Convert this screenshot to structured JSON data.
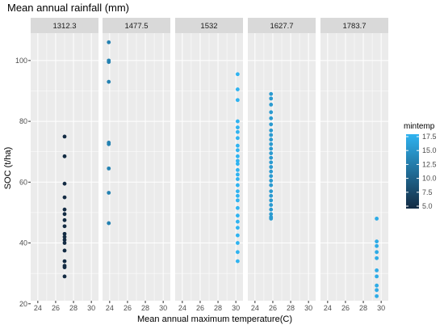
{
  "chart_data": {
    "type": "scatter",
    "title": "Mean annual rainfall (mm)",
    "xlabel": "Mean annual maximum temperature(C)",
    "ylabel": "SOC (t/ha)",
    "xlim": [
      23.2,
      30.8
    ],
    "ylim": [
      21,
      109
    ],
    "x_ticks": [
      24,
      26,
      28,
      30
    ],
    "y_ticks": [
      20,
      40,
      60,
      80,
      100
    ],
    "grid": true,
    "facet_variable": "Mean annual rainfall (mm)",
    "facets": [
      {
        "label": "1312.3",
        "x": 27,
        "mintemp": 5,
        "y": [
          75,
          68.5,
          59.5,
          55,
          51,
          49.5,
          47.5,
          45.5,
          43,
          42,
          41,
          40,
          37.5,
          34,
          32.5,
          32,
          29
        ]
      },
      {
        "label": "1477.5",
        "x": 23.9,
        "mintemp": 13,
        "y": [
          106,
          100,
          99.5,
          93,
          73,
          72.5,
          64.5,
          56.5,
          46.5
        ]
      },
      {
        "label": "1532",
        "x": 30.2,
        "mintemp": 17.5,
        "y": [
          95.5,
          90.5,
          87,
          80,
          78,
          76.5,
          74.5,
          72,
          70.5,
          68.5,
          67,
          66,
          64,
          62.5,
          61,
          59,
          57,
          55.5,
          54,
          51.5,
          49,
          47,
          45,
          42.5,
          40,
          37,
          34
        ]
      },
      {
        "label": "1627.7",
        "x": 25.8,
        "mintemp": 15.2,
        "y": [
          89,
          87.5,
          85.5,
          83,
          81,
          79,
          77,
          75.5,
          74,
          72.5,
          71,
          69.5,
          68,
          66.5,
          65,
          63.5,
          62,
          60.5,
          59,
          57,
          55.5,
          54,
          52.5,
          51,
          49.5,
          48.5,
          48
        ]
      },
      {
        "label": "1783.7",
        "x": 29.5,
        "mintemp": 16.8,
        "y": [
          48,
          40.5,
          39,
          37,
          35,
          31,
          29,
          26,
          24.5,
          22.5
        ]
      }
    ],
    "color_legend": {
      "title": "mintemp",
      "range": [
        5,
        17.5
      ],
      "ticks": [
        "17.5",
        "15.0",
        "12.5",
        "10.0",
        "7.5",
        "5.0"
      ],
      "low_color": "#132b43",
      "high_color": "#2fb3f0"
    },
    "panel_bg": "#ebebeb",
    "strip_bg": "#d9d9d9",
    "grid_color": "#ffffff"
  }
}
